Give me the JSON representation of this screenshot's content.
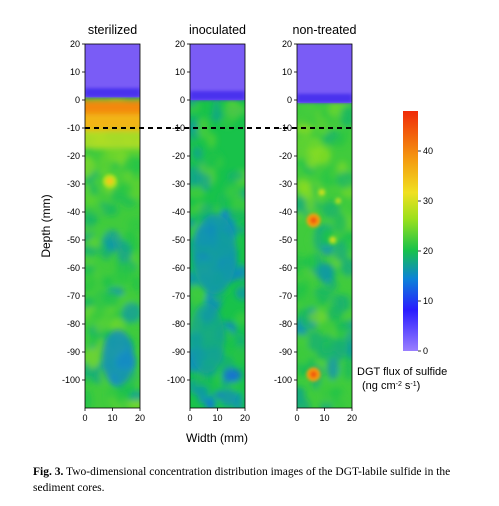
{
  "chart_data": {
    "type": "heatmap",
    "panels": [
      {
        "title": "sterilized",
        "overlying_water_boundary_mm": 1,
        "surface_enriched_layer_mm": [
          0,
          -11
        ],
        "background_flux": 22,
        "hotspots": [
          {
            "width_mm": 9,
            "depth_mm": -29,
            "flux": 34
          }
        ]
      },
      {
        "title": "inoculated",
        "overlying_water_boundary_mm": 0,
        "background_flux": 20,
        "hotspots": []
      },
      {
        "title": "non-treated",
        "overlying_water_boundary_mm": -1,
        "background_flux": 22,
        "hotspots": [
          {
            "width_mm": 6,
            "depth_mm": -43,
            "flux": 44
          },
          {
            "width_mm": 6,
            "depth_mm": -98,
            "flux": 44
          },
          {
            "width_mm": 9,
            "depth_mm": -33,
            "flux": 30
          },
          {
            "width_mm": 13,
            "depth_mm": -50,
            "flux": 30
          },
          {
            "width_mm": 15,
            "depth_mm": -36,
            "flux": 28
          }
        ]
      }
    ],
    "ylabel": "Depth (mm)",
    "xlabel": "Width (mm)",
    "ylim": [
      -110,
      20
    ],
    "xlim": [
      0,
      20
    ],
    "yticks": [
      20,
      10,
      0,
      -10,
      -20,
      -30,
      -40,
      -50,
      -60,
      -70,
      -80,
      -90,
      -100
    ],
    "xticks": [
      0,
      10,
      20
    ],
    "reference_line_depth_mm": -10,
    "colorbar": {
      "title_line1": "DGT flux of sulfide",
      "title_line2_prefix": "(ng cm",
      "exp1": "-2",
      "mid": " s",
      "exp2": "-1",
      "suffix": ")",
      "ticks": [
        0,
        10,
        20,
        30,
        40
      ],
      "range": [
        0,
        48
      ],
      "colors": [
        "#9a7fff",
        "#2a1cff",
        "#0d82d8",
        "#18c24a",
        "#9be01c",
        "#f0e020",
        "#f49a10",
        "#f02a08"
      ]
    }
  },
  "caption": {
    "label": "Fig. 3.",
    "text": " Two-dimensional concentration distribution images of the DGT-labile sulfide in the sediment cores."
  }
}
